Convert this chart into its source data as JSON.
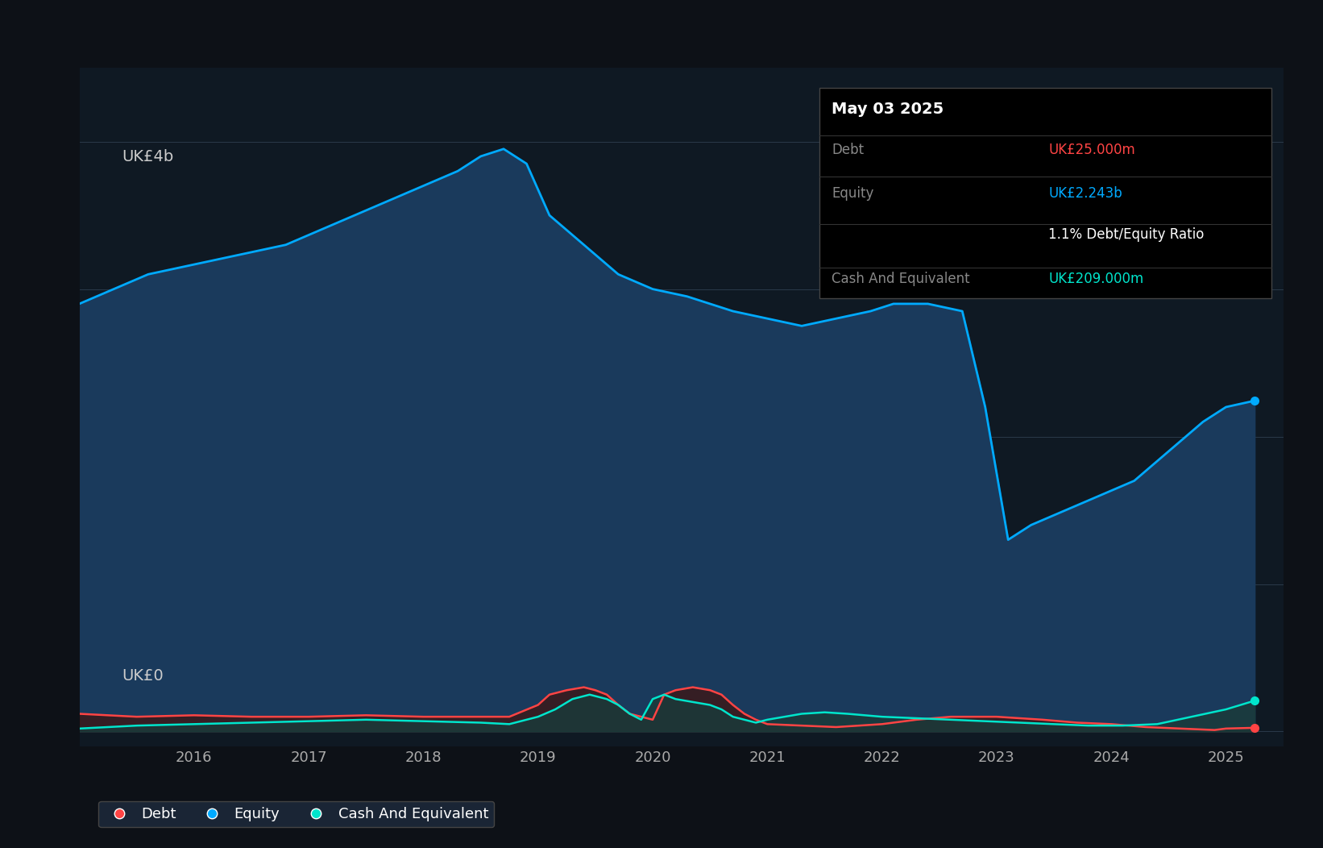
{
  "bg_color": "#0d1117",
  "plot_bg_color": "#0f1923",
  "grid_color": "#2a3a4a",
  "ylabel_top": "UK£4b",
  "ylabel_bottom": "UK£0",
  "equity_color": "#00aaff",
  "equity_fill": "#1a3a5c",
  "debt_color": "#ff4444",
  "debt_fill": "#3a1a1a",
  "cash_color": "#00e5cc",
  "cash_fill": "#1a3a3a",
  "legend_bg": "#1a2535",
  "tooltip_bg": "#000000",
  "tooltip_title": "May 03 2025",
  "tooltip_debt_label": "Debt",
  "tooltip_debt_value": "UK£25.000m",
  "tooltip_equity_label": "Equity",
  "tooltip_equity_value": "UK£2.243b",
  "tooltip_ratio": "1.1% Debt/Equity Ratio",
  "tooltip_cash_label": "Cash And Equivalent",
  "tooltip_cash_value": "UK£209.000m",
  "xmin": 2015.0,
  "xmax": 2025.5,
  "ymin": -0.1,
  "ymax": 4.5,
  "equity_x": [
    2015.0,
    2015.3,
    2015.6,
    2015.9,
    2016.2,
    2016.5,
    2016.8,
    2017.1,
    2017.4,
    2017.7,
    2018.0,
    2018.3,
    2018.5,
    2018.7,
    2018.9,
    2019.1,
    2019.4,
    2019.7,
    2020.0,
    2020.3,
    2020.5,
    2020.7,
    2021.0,
    2021.3,
    2021.6,
    2021.9,
    2022.1,
    2022.4,
    2022.7,
    2022.9,
    2023.1,
    2023.3,
    2023.6,
    2023.9,
    2024.2,
    2024.5,
    2024.8,
    2025.0,
    2025.25
  ],
  "equity_y": [
    2.9,
    3.0,
    3.1,
    3.15,
    3.2,
    3.25,
    3.3,
    3.4,
    3.5,
    3.6,
    3.7,
    3.8,
    3.9,
    3.95,
    3.85,
    3.5,
    3.3,
    3.1,
    3.0,
    2.95,
    2.9,
    2.85,
    2.8,
    2.75,
    2.8,
    2.85,
    2.9,
    2.9,
    2.85,
    2.2,
    1.3,
    1.4,
    1.5,
    1.6,
    1.7,
    1.9,
    2.1,
    2.2,
    2.243
  ],
  "debt_x": [
    2015.0,
    2015.5,
    2016.0,
    2016.5,
    2017.0,
    2017.5,
    2018.0,
    2018.5,
    2018.75,
    2019.0,
    2019.1,
    2019.25,
    2019.4,
    2019.5,
    2019.6,
    2019.7,
    2019.8,
    2019.9,
    2020.0,
    2020.1,
    2020.2,
    2020.35,
    2020.5,
    2020.6,
    2020.7,
    2020.8,
    2020.9,
    2021.0,
    2021.3,
    2021.6,
    2022.0,
    2022.3,
    2022.6,
    2022.9,
    2023.0,
    2023.2,
    2023.4,
    2023.7,
    2024.0,
    2024.3,
    2024.6,
    2024.9,
    2025.0,
    2025.25
  ],
  "debt_y": [
    0.12,
    0.1,
    0.11,
    0.1,
    0.1,
    0.11,
    0.1,
    0.1,
    0.1,
    0.18,
    0.25,
    0.28,
    0.3,
    0.28,
    0.25,
    0.18,
    0.12,
    0.1,
    0.08,
    0.25,
    0.28,
    0.3,
    0.28,
    0.25,
    0.18,
    0.12,
    0.08,
    0.05,
    0.04,
    0.03,
    0.05,
    0.08,
    0.1,
    0.1,
    0.1,
    0.09,
    0.08,
    0.06,
    0.05,
    0.03,
    0.02,
    0.01,
    0.02,
    0.025
  ],
  "cash_x": [
    2015.0,
    2015.5,
    2016.0,
    2016.5,
    2017.0,
    2017.5,
    2018.0,
    2018.5,
    2018.75,
    2019.0,
    2019.15,
    2019.3,
    2019.45,
    2019.6,
    2019.7,
    2019.8,
    2019.9,
    2020.0,
    2020.1,
    2020.2,
    2020.35,
    2020.5,
    2020.6,
    2020.7,
    2020.8,
    2020.9,
    2021.0,
    2021.3,
    2021.5,
    2021.7,
    2022.0,
    2022.3,
    2022.6,
    2022.9,
    2023.2,
    2023.5,
    2023.8,
    2024.1,
    2024.4,
    2024.7,
    2025.0,
    2025.25
  ],
  "cash_y": [
    0.02,
    0.04,
    0.05,
    0.06,
    0.07,
    0.08,
    0.07,
    0.06,
    0.05,
    0.1,
    0.15,
    0.22,
    0.25,
    0.22,
    0.18,
    0.12,
    0.08,
    0.22,
    0.25,
    0.22,
    0.2,
    0.18,
    0.15,
    0.1,
    0.08,
    0.06,
    0.08,
    0.12,
    0.13,
    0.12,
    0.1,
    0.09,
    0.08,
    0.07,
    0.06,
    0.05,
    0.04,
    0.04,
    0.05,
    0.1,
    0.15,
    0.209
  ],
  "xticks": [
    2016,
    2017,
    2018,
    2019,
    2020,
    2021,
    2022,
    2023,
    2024,
    2025
  ],
  "ytick_positions": [
    0,
    1,
    2,
    3,
    4
  ],
  "legend_items": [
    {
      "label": "Debt",
      "color": "#ff4444"
    },
    {
      "label": "Equity",
      "color": "#00aaff"
    },
    {
      "label": "Cash And Equivalent",
      "color": "#00e5cc"
    }
  ]
}
